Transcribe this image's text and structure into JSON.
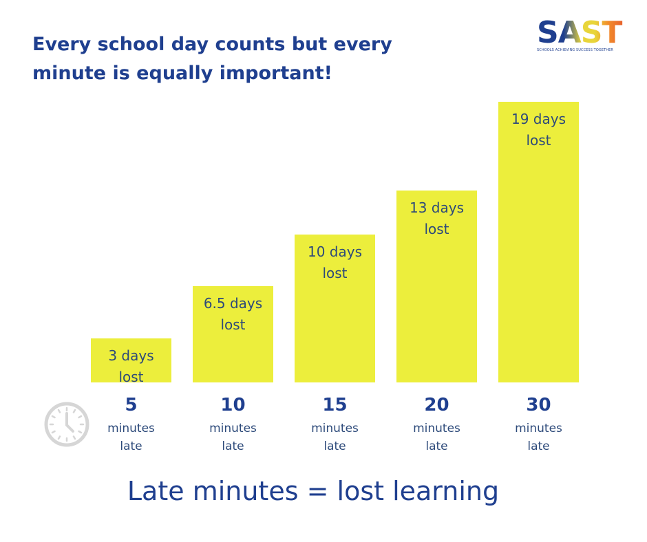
{
  "chart_data": {
    "type": "bar",
    "title": "Every school day counts but every minute is equally important!",
    "logo": {
      "name": "SAST",
      "tagline": "SCHOOLS ACHIEVING SUCCESS TOGETHER"
    },
    "categories": [
      "5",
      "10",
      "15",
      "20",
      "30"
    ],
    "category_notes": [
      "minutes late",
      "minutes late",
      "minutes late",
      "minutes late",
      "minutes late"
    ],
    "values": [
      3,
      6.5,
      10,
      13,
      19
    ],
    "value_labels": [
      "3 days lost",
      "6.5 days lost",
      "10 days lost",
      "13 days lost",
      "19 days lost"
    ],
    "color": "#ecee3c",
    "caption": "Late minutes = lost learning"
  }
}
